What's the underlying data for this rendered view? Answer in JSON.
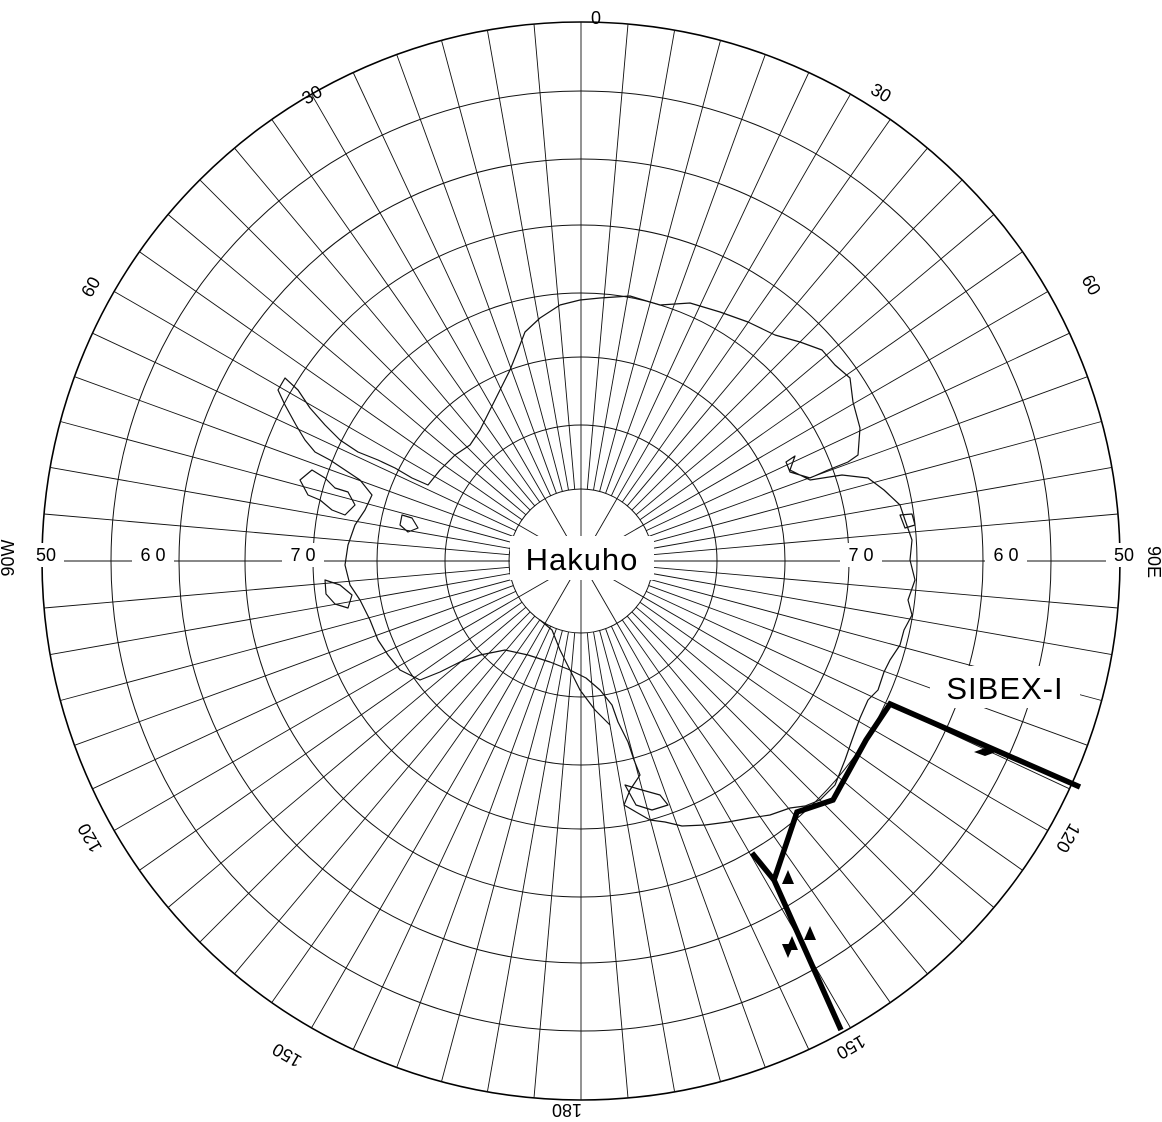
{
  "map": {
    "vessel_label": "Hakuho",
    "expedition_label": "SIBEX-I",
    "longitude_labels": {
      "top": "0",
      "w30": "30",
      "e30": "30",
      "w60": "60",
      "e60": "60",
      "w90": "90W",
      "e90": "90E",
      "w120": "120",
      "e120": "120",
      "w150": "150",
      "e150": "150",
      "bottom": "180"
    },
    "latitude_labels": {
      "w50": "50",
      "w60": "6 0",
      "w70": "7 0",
      "e70": "7 0",
      "e60": "6 0",
      "e50": "50"
    },
    "colors": {
      "lines": "#000000",
      "background": "#ffffff"
    }
  }
}
